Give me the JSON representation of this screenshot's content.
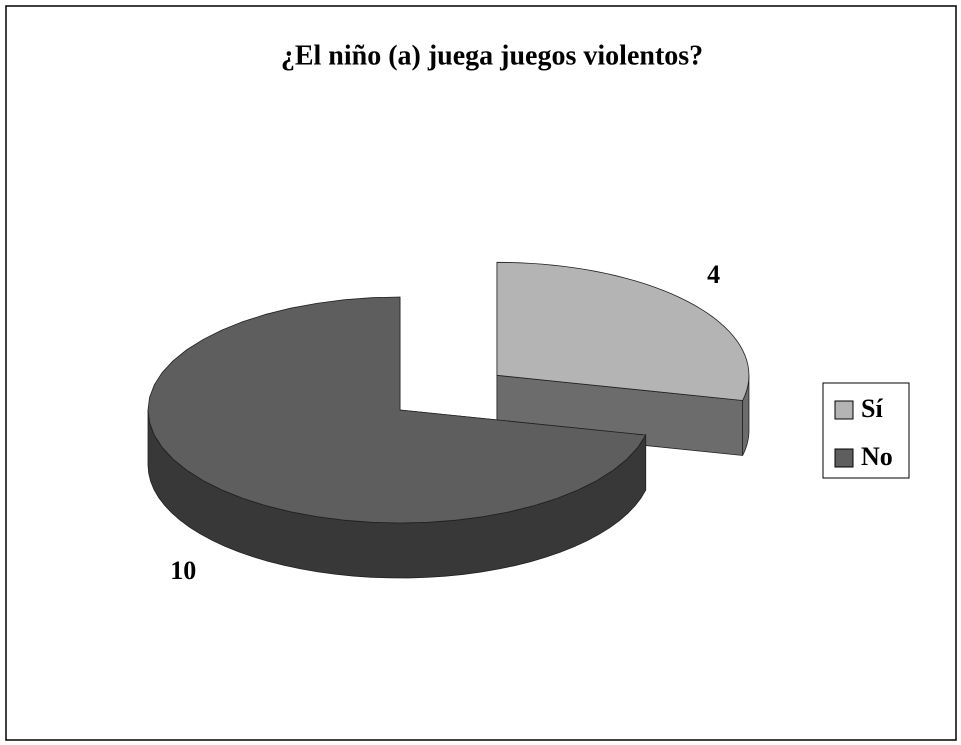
{
  "chart_data": {
    "type": "pie",
    "title": "¿El niño (a) juega juegos violentos?",
    "categories": [
      "Sí",
      "No"
    ],
    "values": [
      4,
      10
    ],
    "colors": [
      "#b4b4b4",
      "#5e5e5e"
    ],
    "legend": "right"
  }
}
